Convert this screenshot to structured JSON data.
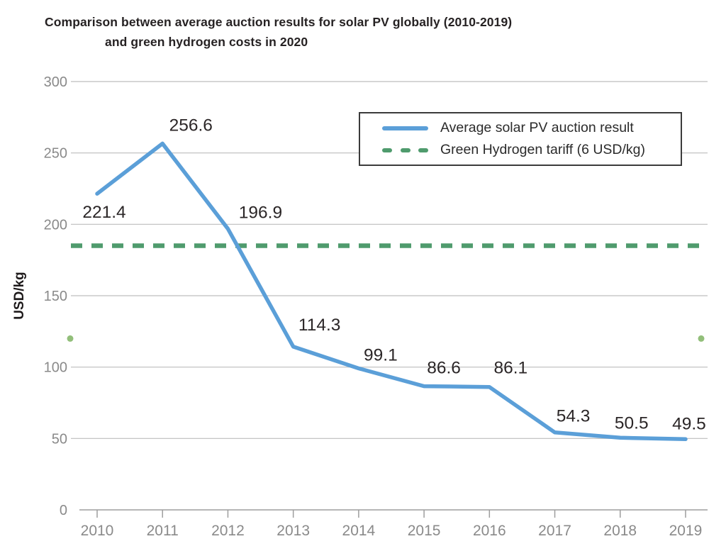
{
  "title": {
    "line1": "Comparison between average auction results for solar PV globally (2010-2019)",
    "line2": "and green hydrogen costs in 2020"
  },
  "chart_data": {
    "type": "line",
    "x": [
      2010,
      2011,
      2012,
      2013,
      2014,
      2015,
      2016,
      2017,
      2018,
      2019
    ],
    "series": [
      {
        "name": "Average solar PV auction result",
        "values": [
          221.4,
          256.6,
          196.9,
          114.3,
          99.1,
          86.6,
          86.1,
          54.3,
          50.5,
          49.5
        ],
        "color": "#5b9fd8",
        "style": "solid"
      },
      {
        "name": "Green Hydrogen tariff (6 USD/kg)",
        "type": "hline",
        "level": 185,
        "color": "#4f9b6d",
        "style": "dashed"
      }
    ],
    "data_labels": [
      "221.4",
      "256.6",
      "196.9",
      "114.3",
      "99.1",
      "86.6",
      "86.1",
      "54.3",
      "50.5",
      "49.5"
    ],
    "ylabel": "USD/kg",
    "yticks": [
      0,
      50,
      100,
      150,
      200,
      250,
      300
    ],
    "ylim": [
      0,
      300
    ],
    "grid": "horizontal",
    "legend_position": "top-right",
    "stray_dots": {
      "value": 120,
      "color": "#92bf7a",
      "positions": [
        "left-edge",
        "right-edge"
      ]
    }
  },
  "colors": {
    "pv_line": "#5b9fd8",
    "tariff_line": "#4f9b6d",
    "gridline": "#bdbdbd",
    "axis": "#9e9e9e",
    "tick_text": "#8a8a8a",
    "data_label_text": "#2b2627",
    "title_text": "#262223"
  }
}
